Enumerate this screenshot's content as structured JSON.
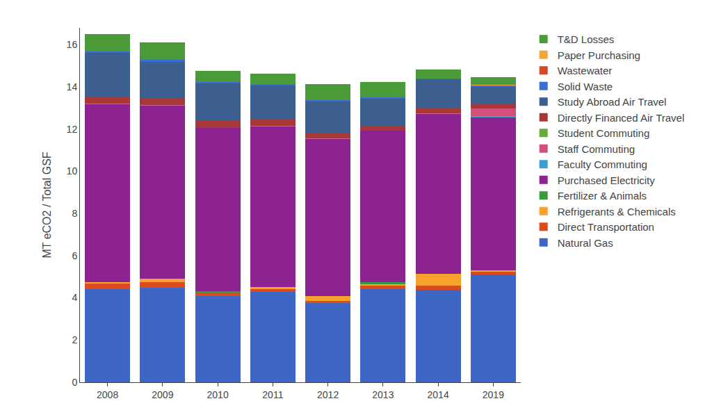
{
  "chart_data": {
    "type": "bar",
    "stacked": true,
    "grid": false,
    "legend": "right",
    "y_label": "MT eCO2 / Total GSF",
    "categories": [
      "2008",
      "2009",
      "2010",
      "2011",
      "2012",
      "2013",
      "2014",
      "2019"
    ],
    "ylim": [
      0,
      16.8
    ],
    "yticks": [
      0,
      2,
      4,
      6,
      8,
      10,
      12,
      14,
      16
    ],
    "series": [
      {
        "name": "Natural Gas",
        "color": "#3d66c5",
        "values": [
          4.42,
          4.49,
          4.07,
          4.28,
          3.75,
          4.4,
          4.38,
          5.1
        ]
      },
      {
        "name": "Direct Transportation",
        "color": "#dc4a1f",
        "values": [
          0.26,
          0.25,
          0.18,
          0.12,
          0.12,
          0.18,
          0.2,
          0.13
        ]
      },
      {
        "name": "Refrigerants & Chemicals",
        "color": "#f7a22e",
        "values": [
          0.06,
          0.17,
          0,
          0.1,
          0.2,
          0.07,
          0.57,
          0.06
        ]
      },
      {
        "name": "Fertilizer & Animals",
        "color": "#3b9a3c",
        "values": [
          0,
          0,
          0.07,
          0,
          0,
          0.08,
          0,
          0
        ]
      },
      {
        "name": "Purchased Electricity",
        "color": "#8c2390",
        "values": [
          8.43,
          8.19,
          7.75,
          7.63,
          7.46,
          7.2,
          7.57,
          7.26
        ]
      },
      {
        "name": "Faculty Commuting",
        "color": "#3a9fd2",
        "values": [
          0,
          0,
          0,
          0,
          0,
          0,
          0,
          0.06
        ]
      },
      {
        "name": "Staff Commuting",
        "color": "#d4507a",
        "values": [
          0,
          0,
          0,
          0,
          0,
          0,
          0,
          0.36
        ]
      },
      {
        "name": "Student Commuting",
        "color": "#6aaa3a",
        "values": [
          0.03,
          0.05,
          0,
          0.03,
          0.03,
          0,
          0.03,
          0.02
        ]
      },
      {
        "name": "Directly Financed Air Travel",
        "color": "#a83838",
        "values": [
          0.3,
          0.3,
          0.31,
          0.3,
          0.24,
          0.22,
          0.22,
          0.21
        ]
      },
      {
        "name": "Study Abroad Air Travel",
        "color": "#3c5f8f",
        "values": [
          2.12,
          1.75,
          1.79,
          1.6,
          1.5,
          1.3,
          1.38,
          0.8
        ]
      },
      {
        "name": "Solid Waste",
        "color": "#3b6dd6",
        "values": [
          0.05,
          0.08,
          0.06,
          0.08,
          0.07,
          0.05,
          0.05,
          0.03
        ]
      },
      {
        "name": "Wastewater",
        "color": "#d04a2a",
        "values": [
          0,
          0,
          0,
          0,
          0,
          0,
          0,
          0.02
        ]
      },
      {
        "name": "Paper Purchasing",
        "color": "#f5a53a",
        "values": [
          0,
          0,
          0,
          0,
          0,
          0,
          0,
          0.05
        ]
      },
      {
        "name": "T&D Losses",
        "color": "#4a9a3a",
        "values": [
          0.82,
          0.82,
          0.52,
          0.48,
          0.76,
          0.74,
          0.42,
          0.37
        ]
      }
    ]
  }
}
